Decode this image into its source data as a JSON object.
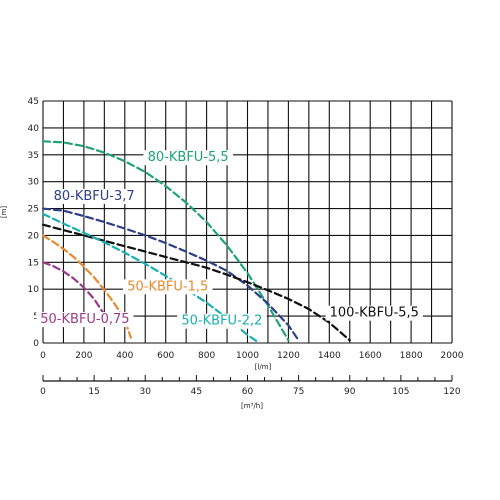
{
  "chart_data": {
    "type": "line",
    "y_axis": {
      "label": "[m]",
      "range": [
        0,
        45
      ],
      "ticks": [
        "0",
        "5",
        "10",
        "15",
        "20",
        "25",
        "30",
        "35",
        "40",
        "45"
      ]
    },
    "x_axis_primary": {
      "label": "[l/m]",
      "range": [
        0,
        2000
      ],
      "ticks": [
        "0",
        "200",
        "400",
        "600",
        "800",
        "1000",
        "1200",
        "1400",
        "1600",
        "1800",
        "2000"
      ]
    },
    "x_axis_secondary": {
      "label": "[m³/h]",
      "range": [
        0,
        120
      ],
      "ticks": [
        "0",
        "15",
        "30",
        "45",
        "60",
        "75",
        "90",
        "105",
        "120"
      ]
    },
    "grid": true,
    "series": [
      {
        "name": "80-KBFU-5,5",
        "color": "#1fa374",
        "x": [
          0,
          100,
          200,
          300,
          400,
          500,
          600,
          700,
          800,
          900,
          1000,
          1100,
          1200
        ],
        "y": [
          37.5,
          37.3,
          36.6,
          35.4,
          33.8,
          31.8,
          29.2,
          26.1,
          22.5,
          18.1,
          13.0,
          7.0,
          0.5
        ]
      },
      {
        "name": "80-KBFU-3,7",
        "color": "#2d3f86",
        "x": [
          0,
          100,
          200,
          300,
          400,
          500,
          600,
          700,
          800,
          900,
          1000,
          1100,
          1200,
          1250
        ],
        "y": [
          25.0,
          24.6,
          23.6,
          22.5,
          21.3,
          20.0,
          18.6,
          17.0,
          15.3,
          13.4,
          10.7,
          7.3,
          3.3,
          0.5
        ]
      },
      {
        "name": "100-KBFU-5,5",
        "color": "#111111",
        "x": [
          0,
          100,
          200,
          300,
          400,
          500,
          600,
          700,
          800,
          900,
          1000,
          1100,
          1200,
          1300,
          1400,
          1500
        ],
        "y": [
          22.0,
          21.0,
          20.0,
          19.0,
          18.0,
          17.0,
          16.0,
          15.0,
          14.0,
          12.7,
          11.3,
          9.8,
          8.2,
          6.3,
          3.8,
          0.5
        ]
      },
      {
        "name": "50-KBFU-2,2",
        "color": "#1ab0b0",
        "x": [
          0,
          100,
          200,
          300,
          400,
          500,
          600,
          700,
          800,
          900,
          1000,
          1050
        ],
        "y": [
          24.0,
          22.2,
          20.5,
          18.7,
          16.8,
          14.7,
          12.5,
          10.0,
          7.5,
          4.6,
          1.5,
          0.2
        ]
      },
      {
        "name": "50-KBFU-1,5",
        "color": "#e88a2e",
        "x": [
          0,
          50,
          100,
          150,
          200,
          250,
          300,
          350,
          400,
          430
        ],
        "y": [
          20.0,
          18.8,
          17.5,
          16.0,
          14.2,
          12.2,
          9.9,
          7.3,
          4.2,
          1.0
        ]
      },
      {
        "name": "50-KBFU-0,75",
        "color": "#9c3a8a",
        "x": [
          0,
          50,
          100,
          150,
          200,
          250,
          300,
          320
        ],
        "y": [
          15.0,
          14.3,
          13.3,
          12.0,
          10.3,
          8.2,
          5.3,
          3.5
        ]
      }
    ]
  }
}
